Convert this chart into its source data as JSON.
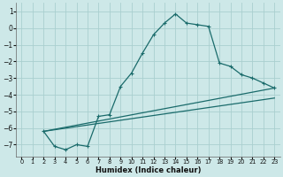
{
  "title": "",
  "xlabel": "Humidex (Indice chaleur)",
  "background_color": "#cde8e8",
  "grid_color": "#aacfcf",
  "line_color": "#1a6b6b",
  "xlim": [
    -0.5,
    23.5
  ],
  "ylim": [
    -7.7,
    1.5
  ],
  "yticks": [
    1,
    0,
    -1,
    -2,
    -3,
    -4,
    -5,
    -6,
    -7
  ],
  "xticks": [
    0,
    1,
    2,
    3,
    4,
    5,
    6,
    7,
    8,
    9,
    10,
    11,
    12,
    13,
    14,
    15,
    16,
    17,
    18,
    19,
    20,
    21,
    22,
    23
  ],
  "curve": {
    "x": [
      2,
      3,
      4,
      5,
      6,
      7,
      8,
      9,
      10,
      11,
      12,
      13,
      14,
      15,
      16,
      17,
      18,
      19,
      20,
      21,
      22,
      23
    ],
    "y": [
      -6.2,
      -7.1,
      -7.3,
      -7.0,
      -7.1,
      -5.3,
      -5.2,
      -3.5,
      -2.7,
      -1.5,
      -0.4,
      0.3,
      0.85,
      0.3,
      0.2,
      0.1,
      -2.1,
      -2.3,
      -2.8,
      -3.0,
      -3.3,
      -3.6
    ]
  },
  "line1": {
    "x": [
      2,
      23
    ],
    "y": [
      -6.2,
      -3.6
    ]
  },
  "line2": {
    "x": [
      2,
      23
    ],
    "y": [
      -6.2,
      -4.2
    ]
  }
}
